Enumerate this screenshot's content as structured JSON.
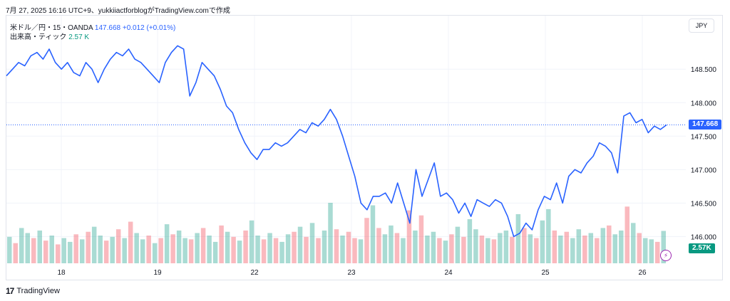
{
  "header": {
    "caption": "7月 27, 2025 16:16 UTC+9、yukkiiactforblogがTradingView.comで作成"
  },
  "legend": {
    "symbol": "米ドル／円・15・OANDA",
    "last": "147.668",
    "change": "+0.012 (+0.01%)",
    "volume_label": "出来高・ティック",
    "volume_value": "2.57 K"
  },
  "currency_button": "JPY",
  "badges": {
    "last_price": "147.668",
    "volume": "2.57K"
  },
  "footer": {
    "brand": "TradingView",
    "logo_glyph": "17"
  },
  "colors": {
    "line": "#2962ff",
    "vol_up": "#089981",
    "vol_down": "#f23645",
    "grid": "#f0f3fa"
  },
  "chart_data": {
    "type": "line",
    "title": "",
    "xlabel": "",
    "ylabel": "",
    "ylim": [
      145.6,
      149.3
    ],
    "y_ticks": [
      "148.500",
      "148.000",
      "147.500",
      "147.000",
      "146.500",
      "146.000"
    ],
    "x_tick_labels": [
      "18",
      "19",
      "22",
      "23",
      "24",
      "25",
      "26"
    ],
    "last_price": 147.668,
    "series": [
      {
        "values": [
          148.4,
          148.5,
          148.6,
          148.55,
          148.7,
          148.75,
          148.65,
          148.8,
          148.6,
          148.5,
          148.6,
          148.45,
          148.4,
          148.6,
          148.5,
          148.3,
          148.5,
          148.65,
          148.75,
          148.7,
          148.8,
          148.65,
          148.6,
          148.5,
          148.4,
          148.3,
          148.6,
          148.75,
          148.85,
          148.8,
          148.1,
          148.3,
          148.6,
          148.5,
          148.4,
          148.2,
          147.95,
          147.85,
          147.6,
          147.4,
          147.25,
          147.15,
          147.3,
          147.3,
          147.4,
          147.35,
          147.4,
          147.5,
          147.6,
          147.55,
          147.7,
          147.65,
          147.75,
          147.9,
          147.75,
          147.5,
          147.2,
          146.9,
          146.5,
          146.4,
          146.6,
          146.6,
          146.65,
          146.5,
          146.8,
          146.5,
          146.2,
          147.0,
          146.6,
          146.85,
          147.1,
          146.6,
          146.65,
          146.55,
          146.35,
          146.5,
          146.3,
          146.55,
          146.5,
          146.45,
          146.55,
          146.5,
          146.3,
          146.0,
          146.05,
          146.2,
          146.1,
          146.4,
          146.6,
          146.55,
          146.8,
          146.5,
          146.9,
          147.0,
          146.95,
          147.1,
          147.2,
          147.4,
          147.35,
          147.25,
          146.95,
          147.8,
          147.85,
          147.7,
          147.75,
          147.55,
          147.65,
          147.6,
          147.668
        ]
      }
    ],
    "volume": {
      "values": [
        2.1,
        1.6,
        2.8,
        2.4,
        2.0,
        2.6,
        1.8,
        2.2,
        1.5,
        2.0,
        1.7,
        2.3,
        1.9,
        2.5,
        2.9,
        2.2,
        1.8,
        2.1,
        2.7,
        2.0,
        3.3,
        2.4,
        1.9,
        2.2,
        1.6,
        2.0,
        3.1,
        2.3,
        2.6,
        2.0,
        1.9,
        2.4,
        2.8,
        2.2,
        1.7,
        3.0,
        2.5,
        2.1,
        1.8,
        2.6,
        3.4,
        2.2,
        1.9,
        2.4,
        2.0,
        1.7,
        2.3,
        2.5,
        2.9,
        2.1,
        3.2,
        2.0,
        2.6,
        4.8,
        2.7,
        2.2,
        2.5,
        2.0,
        1.9,
        3.6,
        4.6,
        2.8,
        2.3,
        3.0,
        2.4,
        2.0,
        4.2,
        2.6,
        3.8,
        2.2,
        2.5,
        2.0,
        1.8,
        2.3,
        2.9,
        2.1,
        3.5,
        2.7,
        2.2,
        2.0,
        1.9,
        2.4,
        2.6,
        2.1,
        3.9,
        2.8,
        2.3,
        2.0,
        3.4,
        4.3,
        2.6,
        2.2,
        2.5,
        2.0,
        2.7,
        2.2,
        2.4,
        2.0,
        2.8,
        3.0,
        2.3,
        2.6,
        4.5,
        3.2,
        2.4,
        2.0,
        1.9,
        1.7,
        2.57
      ],
      "up": [
        1,
        0,
        1,
        1,
        0,
        1,
        0,
        1,
        0,
        1,
        1,
        0,
        1,
        0,
        1,
        1,
        0,
        1,
        0,
        1,
        0,
        1,
        1,
        0,
        1,
        0,
        1,
        0,
        1,
        1,
        0,
        1,
        0,
        1,
        1,
        0,
        1,
        0,
        1,
        0,
        1,
        1,
        0,
        1,
        0,
        1,
        1,
        0,
        1,
        0,
        1,
        0,
        1,
        1,
        0,
        1,
        0,
        0,
        1,
        0,
        1,
        0,
        1,
        1,
        0,
        1,
        0,
        1,
        0,
        1,
        1,
        0,
        1,
        0,
        1,
        0,
        1,
        1,
        0,
        1,
        0,
        1,
        1,
        0,
        1,
        0,
        1,
        0,
        1,
        1,
        0,
        1,
        0,
        1,
        1,
        0,
        1,
        0,
        1,
        0,
        1,
        1,
        0,
        1,
        0,
        1,
        1,
        0,
        1
      ]
    }
  }
}
